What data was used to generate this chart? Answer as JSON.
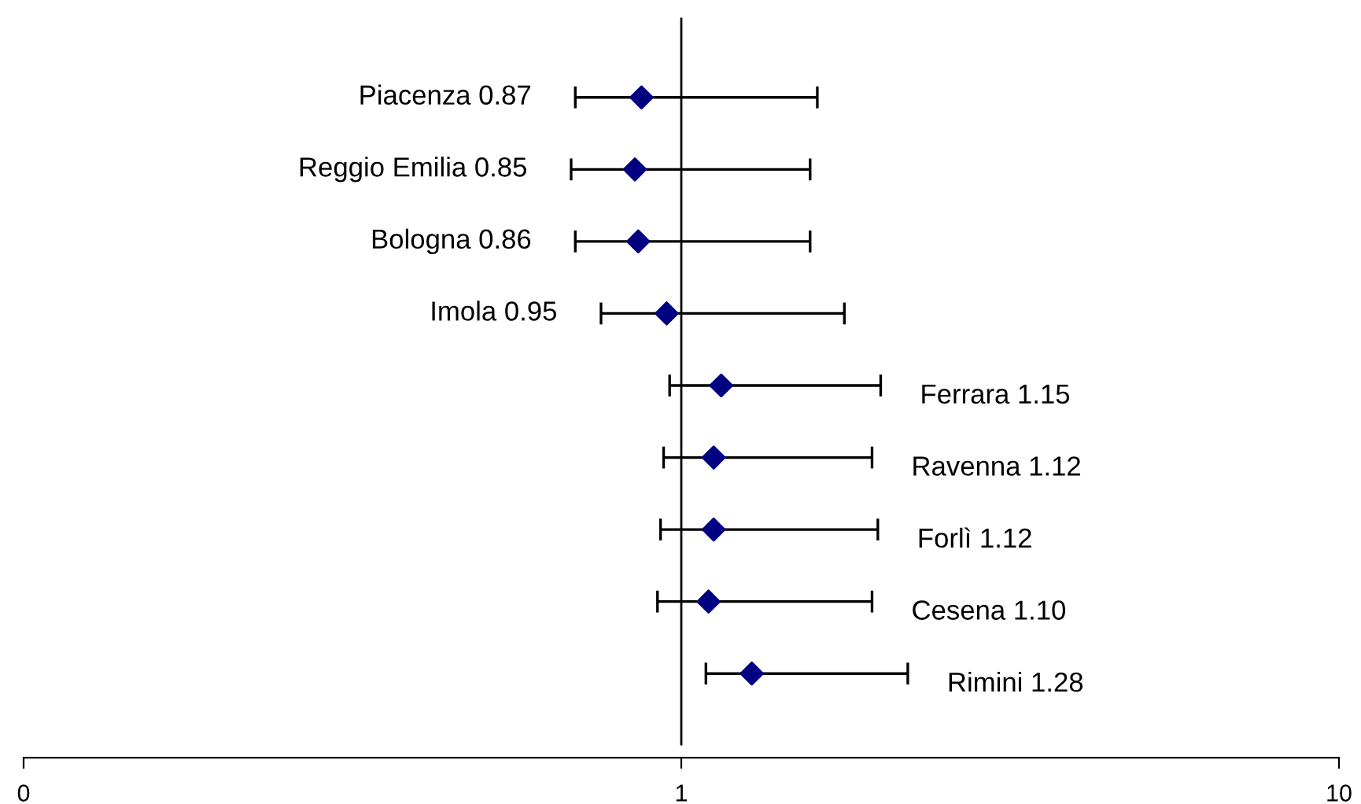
{
  "chart_data": {
    "type": "scatter",
    "orientation": "horizontal",
    "log": "x",
    "categories": [
      "Piacenza 0.87",
      "Reggio Emilia 0.85",
      "Bologna 0.86",
      "Imola 0.95",
      "Ferrara 1.15",
      "Ravenna 1.12",
      "Forlì 1.12",
      "Cesena 1.10",
      "Rimini 1.28"
    ],
    "values": [
      0.87,
      0.85,
      0.86,
      0.95,
      1.15,
      1.12,
      1.12,
      1.1,
      1.28
    ],
    "errors": [
      [
        0.69,
        1.61
      ],
      [
        0.68,
        1.57
      ],
      [
        0.69,
        1.57
      ],
      [
        0.755,
        1.77
      ],
      [
        0.96,
        2.01
      ],
      [
        0.94,
        1.95
      ],
      [
        0.93,
        1.99
      ],
      [
        0.92,
        1.95
      ],
      [
        1.09,
        2.21
      ]
    ],
    "color": "#000080",
    "marker": "diamond",
    "xlim": [
      0.1,
      10
    ],
    "xticks": [
      {
        "value": 0.1,
        "label": "0"
      },
      1,
      10
    ],
    "ref_lines": [
      {
        "axis": "x",
        "value": 1,
        "label": null,
        "color": "#000000"
      }
    ],
    "grid": false,
    "legend": false
  }
}
